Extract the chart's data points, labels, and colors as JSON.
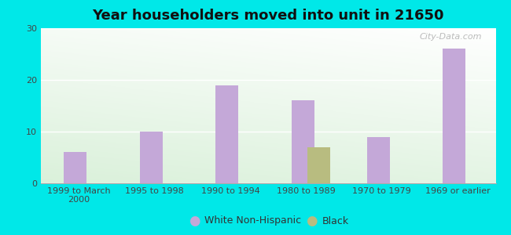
{
  "title": "Year householders moved into unit in 21650",
  "categories": [
    "1999 to March\n2000",
    "1995 to 1998",
    "1990 to 1994",
    "1980 to 1989",
    "1970 to 1979",
    "1969 or earlier"
  ],
  "white_values": [
    6,
    10,
    19,
    16,
    9,
    26
  ],
  "black_values": [
    0,
    0,
    0,
    7,
    0,
    0
  ],
  "white_color": "#c4a8d8",
  "black_color": "#b8bc80",
  "ylim": [
    0,
    30
  ],
  "yticks": [
    0,
    10,
    20,
    30
  ],
  "background_outer": "#00e8e8",
  "legend_labels": [
    "White Non-Hispanic",
    "Black"
  ],
  "watermark": "City-Data.com",
  "bar_width": 0.3,
  "title_fontsize": 13
}
